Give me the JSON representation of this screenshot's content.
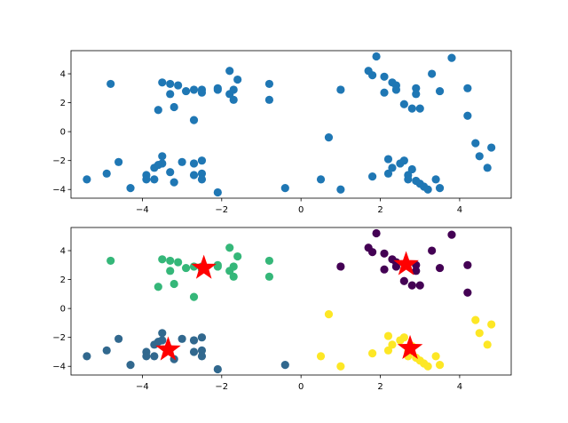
{
  "chart_data": [
    {
      "type": "scatter",
      "title": "",
      "xlabel": "",
      "ylabel": "",
      "xlim": [
        -5.8,
        5.3
      ],
      "ylim": [
        -4.6,
        5.6
      ],
      "xticks": [
        -4,
        -2,
        0,
        2,
        4
      ],
      "yticks": [
        -4,
        -2,
        0,
        2,
        4
      ],
      "grid": false,
      "legend": "none",
      "series": [
        {
          "color": "#1f77b4",
          "points": [
            [
              -4.8,
              3.3
            ],
            [
              -3.5,
              3.4
            ],
            [
              -3.3,
              3.3
            ],
            [
              -3.1,
              3.2
            ],
            [
              -2.9,
              2.8
            ],
            [
              -3.3,
              2.6
            ],
            [
              -3.6,
              1.5
            ],
            [
              -3.2,
              1.7
            ],
            [
              -2.7,
              2.9
            ],
            [
              -2.5,
              2.9
            ],
            [
              -2.5,
              2.7
            ],
            [
              -2.1,
              3.0
            ],
            [
              -2.1,
              2.9
            ],
            [
              -1.8,
              4.2
            ],
            [
              -1.6,
              3.6
            ],
            [
              -1.7,
              2.9
            ],
            [
              -1.8,
              2.6
            ],
            [
              -1.7,
              2.2
            ],
            [
              -2.7,
              0.8
            ],
            [
              -0.8,
              3.3
            ],
            [
              -0.8,
              2.2
            ],
            [
              1.0,
              2.9
            ],
            [
              1.7,
              4.2
            ],
            [
              1.9,
              5.2
            ],
            [
              1.8,
              3.9
            ],
            [
              2.1,
              3.8
            ],
            [
              2.3,
              3.4
            ],
            [
              2.4,
              3.2
            ],
            [
              2.4,
              2.9
            ],
            [
              2.1,
              2.7
            ],
            [
              2.6,
              1.9
            ],
            [
              2.9,
              3.0
            ],
            [
              2.9,
              2.6
            ],
            [
              2.8,
              1.6
            ],
            [
              3.0,
              1.6
            ],
            [
              3.3,
              4.0
            ],
            [
              3.5,
              2.8
            ],
            [
              3.8,
              5.1
            ],
            [
              4.2,
              3.0
            ],
            [
              4.2,
              1.1
            ],
            [
              0.7,
              -0.4
            ],
            [
              -5.4,
              -3.3
            ],
            [
              -4.9,
              -2.9
            ],
            [
              -4.6,
              -2.1
            ],
            [
              -4.3,
              -3.9
            ],
            [
              -3.9,
              -3.0
            ],
            [
              -3.9,
              -3.3
            ],
            [
              -3.7,
              -3.3
            ],
            [
              -3.7,
              -2.5
            ],
            [
              -3.5,
              -2.2
            ],
            [
              -3.6,
              -2.3
            ],
            [
              -3.5,
              -1.7
            ],
            [
              -3.3,
              -2.8
            ],
            [
              -3.2,
              -3.5
            ],
            [
              -3.0,
              -2.1
            ],
            [
              -2.7,
              -2.2
            ],
            [
              -2.7,
              -3.0
            ],
            [
              -2.5,
              -2.0
            ],
            [
              -2.5,
              -2.9
            ],
            [
              -2.5,
              -3.3
            ],
            [
              -2.1,
              -4.2
            ],
            [
              -0.4,
              -3.9
            ],
            [
              0.5,
              -3.3
            ],
            [
              1.0,
              -4.0
            ],
            [
              1.8,
              -3.1
            ],
            [
              2.2,
              -2.9
            ],
            [
              2.2,
              -1.9
            ],
            [
              2.3,
              -2.5
            ],
            [
              2.5,
              -2.2
            ],
            [
              2.6,
              -2.0
            ],
            [
              2.7,
              -3.0
            ],
            [
              2.7,
              -3.3
            ],
            [
              2.8,
              -2.6
            ],
            [
              2.9,
              -3.4
            ],
            [
              3.0,
              -3.6
            ],
            [
              3.1,
              -3.8
            ],
            [
              3.2,
              -4.0
            ],
            [
              3.4,
              -3.3
            ],
            [
              3.5,
              -3.9
            ],
            [
              4.4,
              -0.8
            ],
            [
              4.5,
              -1.7
            ],
            [
              4.7,
              -2.5
            ],
            [
              4.8,
              -1.1
            ]
          ]
        }
      ]
    },
    {
      "type": "scatter",
      "title": "",
      "xlabel": "",
      "ylabel": "",
      "xlim": [
        -5.8,
        5.3
      ],
      "ylim": [
        -4.6,
        5.6
      ],
      "xticks": [
        -4,
        -2,
        0,
        2,
        4
      ],
      "yticks": [
        -4,
        -2,
        0,
        2,
        4
      ],
      "grid": false,
      "legend": "none",
      "series": [
        {
          "color": "#440154",
          "points": [
            [
              1.0,
              2.9
            ],
            [
              1.7,
              4.2
            ],
            [
              1.9,
              5.2
            ],
            [
              1.8,
              3.9
            ],
            [
              2.1,
              3.8
            ],
            [
              2.3,
              3.4
            ],
            [
              2.4,
              3.2
            ],
            [
              2.4,
              2.9
            ],
            [
              2.1,
              2.7
            ],
            [
              2.6,
              1.9
            ],
            [
              2.9,
              3.0
            ],
            [
              2.9,
              2.6
            ],
            [
              2.8,
              1.6
            ],
            [
              3.0,
              1.6
            ],
            [
              3.3,
              4.0
            ],
            [
              3.5,
              2.8
            ],
            [
              3.8,
              5.1
            ],
            [
              4.2,
              3.0
            ],
            [
              4.2,
              1.1
            ]
          ]
        },
        {
          "color": "#31688e",
          "points": [
            [
              -5.4,
              -3.3
            ],
            [
              -4.9,
              -2.9
            ],
            [
              -4.6,
              -2.1
            ],
            [
              -4.3,
              -3.9
            ],
            [
              -3.9,
              -3.0
            ],
            [
              -3.9,
              -3.3
            ],
            [
              -3.7,
              -3.3
            ],
            [
              -3.7,
              -2.5
            ],
            [
              -3.5,
              -2.2
            ],
            [
              -3.6,
              -2.3
            ],
            [
              -3.5,
              -1.7
            ],
            [
              -3.3,
              -2.8
            ],
            [
              -3.2,
              -3.5
            ],
            [
              -3.0,
              -2.1
            ],
            [
              -2.7,
              -2.2
            ],
            [
              -2.7,
              -3.0
            ],
            [
              -2.5,
              -2.0
            ],
            [
              -2.5,
              -2.9
            ],
            [
              -2.5,
              -3.3
            ],
            [
              -2.1,
              -4.2
            ],
            [
              -0.4,
              -3.9
            ]
          ]
        },
        {
          "color": "#35b779",
          "points": [
            [
              -4.8,
              3.3
            ],
            [
              -3.5,
              3.4
            ],
            [
              -3.3,
              3.3
            ],
            [
              -3.1,
              3.2
            ],
            [
              -2.9,
              2.8
            ],
            [
              -3.3,
              2.6
            ],
            [
              -3.6,
              1.5
            ],
            [
              -3.2,
              1.7
            ],
            [
              -2.7,
              2.9
            ],
            [
              -2.5,
              2.9
            ],
            [
              -2.5,
              2.7
            ],
            [
              -2.1,
              3.0
            ],
            [
              -2.1,
              2.9
            ],
            [
              -1.8,
              4.2
            ],
            [
              -1.6,
              3.6
            ],
            [
              -1.7,
              2.9
            ],
            [
              -1.8,
              2.6
            ],
            [
              -1.7,
              2.2
            ],
            [
              -2.7,
              0.8
            ],
            [
              -0.8,
              3.3
            ],
            [
              -0.8,
              2.2
            ]
          ]
        },
        {
          "color": "#fde725",
          "points": [
            [
              0.7,
              -0.4
            ],
            [
              0.5,
              -3.3
            ],
            [
              1.0,
              -4.0
            ],
            [
              1.8,
              -3.1
            ],
            [
              2.2,
              -2.9
            ],
            [
              2.2,
              -1.9
            ],
            [
              2.3,
              -2.5
            ],
            [
              2.5,
              -2.2
            ],
            [
              2.6,
              -2.0
            ],
            [
              2.7,
              -3.0
            ],
            [
              2.7,
              -3.3
            ],
            [
              2.8,
              -2.6
            ],
            [
              2.9,
              -3.4
            ],
            [
              3.0,
              -3.6
            ],
            [
              3.1,
              -3.8
            ],
            [
              3.2,
              -4.0
            ],
            [
              3.4,
              -3.3
            ],
            [
              3.5,
              -3.9
            ],
            [
              4.4,
              -0.8
            ],
            [
              4.5,
              -1.7
            ],
            [
              4.7,
              -2.5
            ],
            [
              4.8,
              -1.1
            ]
          ]
        }
      ],
      "centroids": {
        "color": "#ff0000",
        "marker": "star",
        "points": [
          [
            2.65,
            3.05
          ],
          [
            -3.35,
            -2.85
          ],
          [
            -2.45,
            2.8
          ],
          [
            2.75,
            -2.75
          ]
        ]
      }
    }
  ]
}
